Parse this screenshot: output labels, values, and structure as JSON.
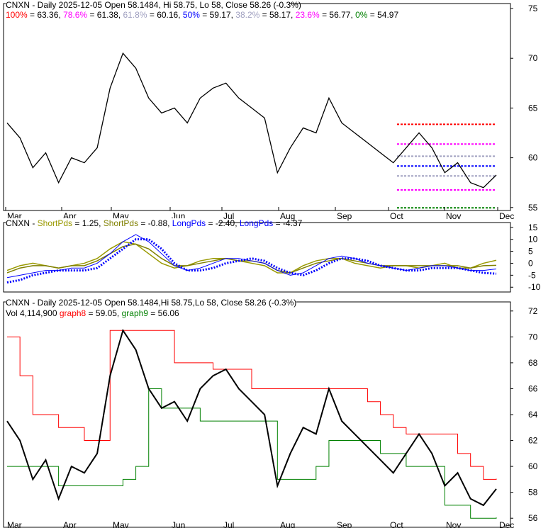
{
  "chart_data": [
    {
      "type": "line",
      "title": "CNXN - Daily 2025-12-05 Open 58.1484, Hi 58.75, Lo 58, Close 58.26 (-0.3%)",
      "fib_levels": [
        {
          "label": "100%",
          "value": 63.36,
          "color": "#ff0000"
        },
        {
          "label": "78.6%",
          "value": 61.38,
          "color": "#ff00ff"
        },
        {
          "label": "61.8%",
          "value": 60.16,
          "color": "#a0a0c0"
        },
        {
          "label": "50%",
          "value": 59.17,
          "color": "#0000ff"
        },
        {
          "label": "38.2%",
          "value": 58.17,
          "color": "#a0a0c0"
        },
        {
          "label": "23.6%",
          "value": 56.77,
          "color": "#ff00ff"
        },
        {
          "label": "0%",
          "value": 54.97,
          "color": "#008000"
        }
      ],
      "x_ticks": [
        "Mar",
        "Apr",
        "May",
        "Jun",
        "Jul",
        "Aug",
        "Sep",
        "Oct",
        "Nov",
        "Dec"
      ],
      "y_ticks": [
        55,
        60,
        65,
        70,
        75
      ],
      "ylim": [
        54.7,
        75.5
      ],
      "close": [
        63.5,
        62,
        59,
        60.5,
        57.5,
        60,
        59.5,
        61,
        67,
        70.5,
        69,
        66,
        64.5,
        65,
        63.5,
        66,
        67,
        67.5,
        66,
        65,
        64,
        58.5,
        61,
        63,
        62.5,
        66,
        63.5,
        62.5,
        61.5,
        60.5,
        59.5,
        61,
        62.5,
        61,
        58.5,
        59.5,
        57.5,
        57,
        58.26
      ]
    },
    {
      "type": "line",
      "title": "CNXN",
      "legend": [
        {
          "name": "ShortPds",
          "value": "1.25",
          "color": "#999900"
        },
        {
          "name": "ShortPds",
          "value": "-0.88",
          "color": "#808000"
        },
        {
          "name": "LongPds",
          "value": "-2.40",
          "color": "#0000ff"
        },
        {
          "name": "LongPds",
          "value": "-4.37",
          "color": "#0000ff"
        }
      ],
      "y_ticks": [
        15,
        10,
        5,
        0,
        -5,
        -10
      ],
      "ylim": [
        -12,
        17
      ],
      "series": [
        {
          "name": "ShortPds",
          "values": [
            -3,
            -1,
            0,
            -1,
            -2,
            -1,
            0,
            2,
            6,
            9,
            8,
            4,
            0,
            -2,
            -1,
            1,
            2,
            2,
            1,
            0,
            -1,
            -4,
            -4,
            -1,
            1,
            2,
            2,
            0,
            -1,
            -2,
            -1,
            -1,
            -2,
            -1,
            0,
            -2,
            -2,
            0,
            1.25
          ]
        },
        {
          "name": "ShortPds",
          "values": [
            -4,
            -2,
            -1,
            -1,
            -2,
            -1,
            -1,
            1,
            4,
            7,
            8,
            6,
            2,
            -1,
            -1,
            0,
            1,
            2,
            1,
            1,
            0,
            -3,
            -4,
            -2,
            0,
            1,
            2,
            1,
            0,
            -1,
            -1,
            -1,
            -1,
            -1,
            -1,
            -1,
            -2,
            -1,
            -0.88
          ]
        },
        {
          "name": "LongPds",
          "values": [
            -6,
            -5,
            -4,
            -3,
            -3,
            -2,
            -2,
            0,
            4,
            9,
            12,
            9,
            4,
            -1,
            -3,
            -2,
            0,
            2,
            2,
            1,
            0,
            -3,
            -5,
            -4,
            -1,
            2,
            3,
            2,
            0,
            -1,
            -2,
            -3,
            -2,
            -1,
            -1,
            -2,
            -3,
            -3,
            -2.4
          ]
        },
        {
          "name": "LongPds",
          "values": [
            -8,
            -7,
            -5,
            -4,
            -3,
            -3,
            -3,
            -2,
            2,
            6,
            10,
            10,
            6,
            0,
            -3,
            -3,
            -2,
            0,
            1,
            2,
            1,
            -2,
            -4,
            -5,
            -3,
            0,
            2,
            2,
            1,
            -1,
            -2,
            -3,
            -3,
            -2,
            -2,
            -2,
            -3,
            -4,
            -4.37
          ]
        }
      ]
    },
    {
      "type": "line",
      "title": "CNXN - Daily 2025-12-05 Open 58.1484,Hi 58.75,Lo 58, Close 58.26 (-0.3%)",
      "volume_label": "Vol 4,114,900",
      "legend": [
        {
          "name": "graph8",
          "value": "59.05",
          "color": "#ff0000"
        },
        {
          "name": "graph9",
          "value": "56.06",
          "color": "#008000"
        }
      ],
      "y_ticks": [
        56,
        58,
        60,
        62,
        64,
        66,
        68,
        70,
        72
      ],
      "ylim": [
        55.3,
        72.7
      ],
      "graph8": [
        70,
        67,
        64,
        64,
        63,
        63,
        62,
        62,
        70.5,
        70.5,
        70.5,
        70.5,
        70.5,
        68,
        68,
        68,
        67.5,
        67.5,
        67.5,
        66,
        66,
        66,
        66,
        66,
        66,
        66,
        66,
        66,
        65,
        64,
        63,
        62.5,
        62.5,
        62.5,
        62.5,
        61,
        60,
        59,
        59.05
      ],
      "graph9": [
        60,
        60,
        60,
        60,
        58.5,
        58.5,
        58.5,
        58.5,
        58.5,
        59,
        60,
        66,
        64.5,
        64.5,
        64.5,
        63.5,
        63.5,
        63.5,
        63.5,
        63.5,
        63.5,
        59,
        59,
        59,
        60,
        62,
        62,
        62,
        62,
        61,
        61,
        60,
        60,
        60,
        57,
        57,
        56,
        56,
        56.06
      ]
    }
  ]
}
